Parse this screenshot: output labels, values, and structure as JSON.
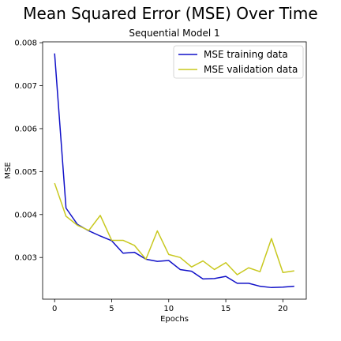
{
  "chart_data": {
    "type": "line",
    "suptitle": "Mean Squared Error (MSE) Over Time",
    "title": "Sequential Model 1",
    "xlabel": "Epochs",
    "ylabel": "MSE",
    "xlim": [
      -1.05,
      22.05
    ],
    "ylim": [
      0.00203,
      0.00802
    ],
    "xticks": [
      0,
      5,
      10,
      15,
      20
    ],
    "yticks": [
      0.003,
      0.004,
      0.005,
      0.006,
      0.007,
      0.008
    ],
    "ytick_labels": [
      "0.003",
      "0.004",
      "0.005",
      "0.006",
      "0.007",
      "0.008"
    ],
    "grid": false,
    "legend_loc": "upper right",
    "x": [
      0,
      1,
      2,
      3,
      4,
      5,
      6,
      7,
      8,
      9,
      10,
      11,
      12,
      13,
      14,
      15,
      16,
      17,
      18,
      19,
      20,
      21
    ],
    "series": [
      {
        "name": "MSE training data",
        "color": "#1010c8",
        "values": [
          0.00775,
          0.00415,
          0.00377,
          0.00362,
          0.0035,
          0.00339,
          0.0031,
          0.00312,
          0.00296,
          0.00291,
          0.00293,
          0.00272,
          0.00268,
          0.0025,
          0.00251,
          0.00256,
          0.0024,
          0.0024,
          0.00233,
          0.0023,
          0.00231,
          0.00233
        ]
      },
      {
        "name": "MSE validation data",
        "color": "#c8c81e",
        "values": [
          0.00473,
          0.00396,
          0.00375,
          0.00363,
          0.00398,
          0.0034,
          0.0034,
          0.00328,
          0.00296,
          0.00362,
          0.00307,
          0.003,
          0.00278,
          0.00292,
          0.00272,
          0.00288,
          0.0026,
          0.00276,
          0.00267,
          0.00344,
          0.00265,
          0.00269
        ]
      }
    ]
  }
}
